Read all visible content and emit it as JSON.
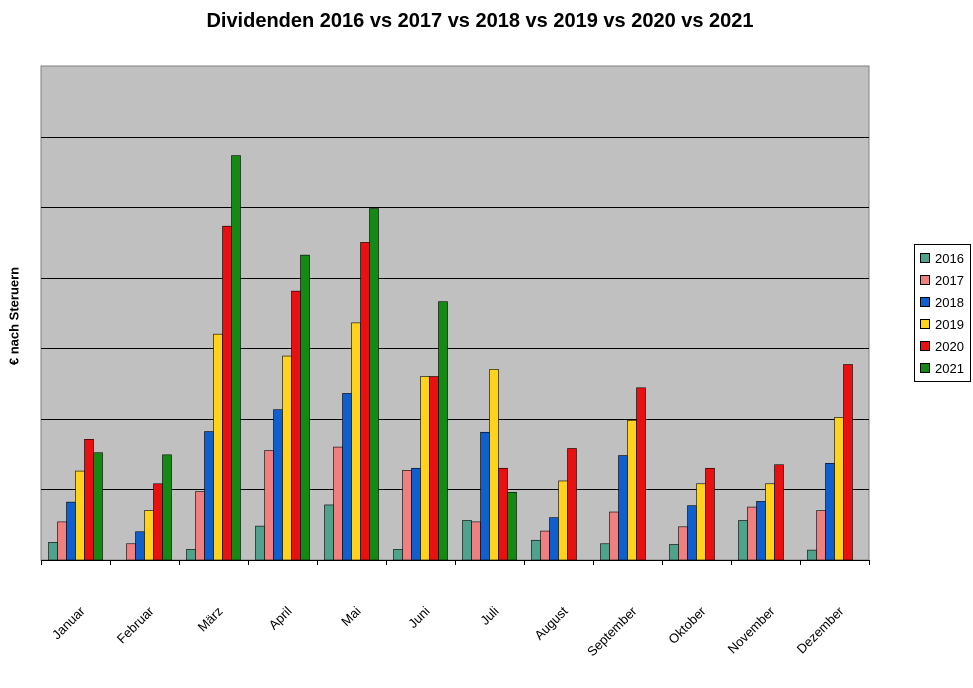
{
  "chart_data": {
    "type": "bar",
    "title": "Dividenden 2016 vs 2017 vs 2018 vs 2019 vs 2020 vs 2021",
    "xlabel": "",
    "ylabel": "€ nach Steruern",
    "ylim": [
      0,
      7
    ],
    "grid": true,
    "legend_position": "right",
    "plot_background": "#c0c0c0",
    "categories": [
      "Januar",
      "Februar",
      "März",
      "April",
      "Mai",
      "Juni",
      "Juli",
      "August",
      "September",
      "Oktober",
      "November",
      "Dezember"
    ],
    "series": [
      {
        "name": "2016",
        "color": "#4fa38c",
        "values": [
          0.25,
          0,
          0.15,
          0.48,
          0.78,
          0.15,
          0.56,
          0.28,
          0.23,
          0.22,
          0.56,
          0.14
        ]
      },
      {
        "name": "2017",
        "color": "#f08080",
        "values": [
          0.54,
          0.23,
          0.97,
          1.55,
          1.6,
          1.27,
          0.54,
          0.41,
          0.68,
          0.47,
          0.75,
          0.7
        ]
      },
      {
        "name": "2018",
        "color": "#0f5fd1",
        "values": [
          0.82,
          0.4,
          1.82,
          2.13,
          2.36,
          1.3,
          1.81,
          0.6,
          1.48,
          0.77,
          0.83,
          1.37
        ]
      },
      {
        "name": "2019",
        "color": "#ffd21c",
        "values": [
          1.26,
          0.7,
          3.2,
          2.89,
          3.36,
          2.6,
          2.7,
          1.12,
          1.98,
          1.08,
          1.08,
          2.02
        ]
      },
      {
        "name": "2020",
        "color": "#e81010",
        "values": [
          1.71,
          1.08,
          4.73,
          3.81,
          4.5,
          2.6,
          1.3,
          1.58,
          2.44,
          1.3,
          1.35,
          2.77
        ]
      },
      {
        "name": "2021",
        "color": "#148a14",
        "values": [
          1.52,
          1.49,
          5.73,
          4.32,
          4.98,
          3.66,
          0.96,
          null,
          null,
          null,
          null,
          null
        ]
      }
    ]
  }
}
